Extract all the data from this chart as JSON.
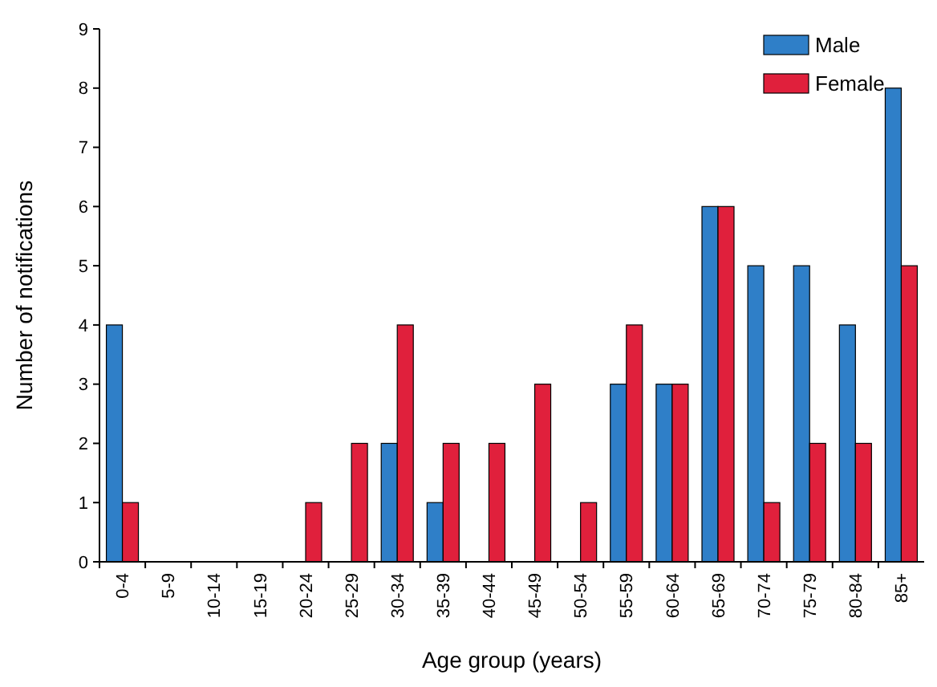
{
  "chart_data": {
    "type": "bar",
    "xlabel": "Age group (years)",
    "ylabel": "Number of notifications",
    "categories": [
      "0-4",
      "5-9",
      "10-14",
      "15-19",
      "20-24",
      "25-29",
      "30-34",
      "35-39",
      "40-44",
      "45-49",
      "50-54",
      "55-59",
      "60-64",
      "65-69",
      "70-74",
      "75-79",
      "80-84",
      "85+"
    ],
    "series": [
      {
        "name": "Male",
        "color": "#2f7fc8",
        "values": [
          4,
          0,
          0,
          0,
          0,
          0,
          2,
          1,
          0,
          0,
          0,
          3,
          3,
          6,
          5,
          5,
          4,
          8
        ]
      },
      {
        "name": "Female",
        "color": "#e0203c",
        "values": [
          1,
          0,
          0,
          0,
          1,
          2,
          4,
          2,
          2,
          3,
          1,
          4,
          3,
          6,
          1,
          2,
          2,
          5
        ]
      }
    ],
    "ylim": [
      0,
      9
    ],
    "yticks": [
      0,
      1,
      2,
      3,
      4,
      5,
      6,
      7,
      8,
      9
    ],
    "grid": false,
    "legend": "top right"
  }
}
